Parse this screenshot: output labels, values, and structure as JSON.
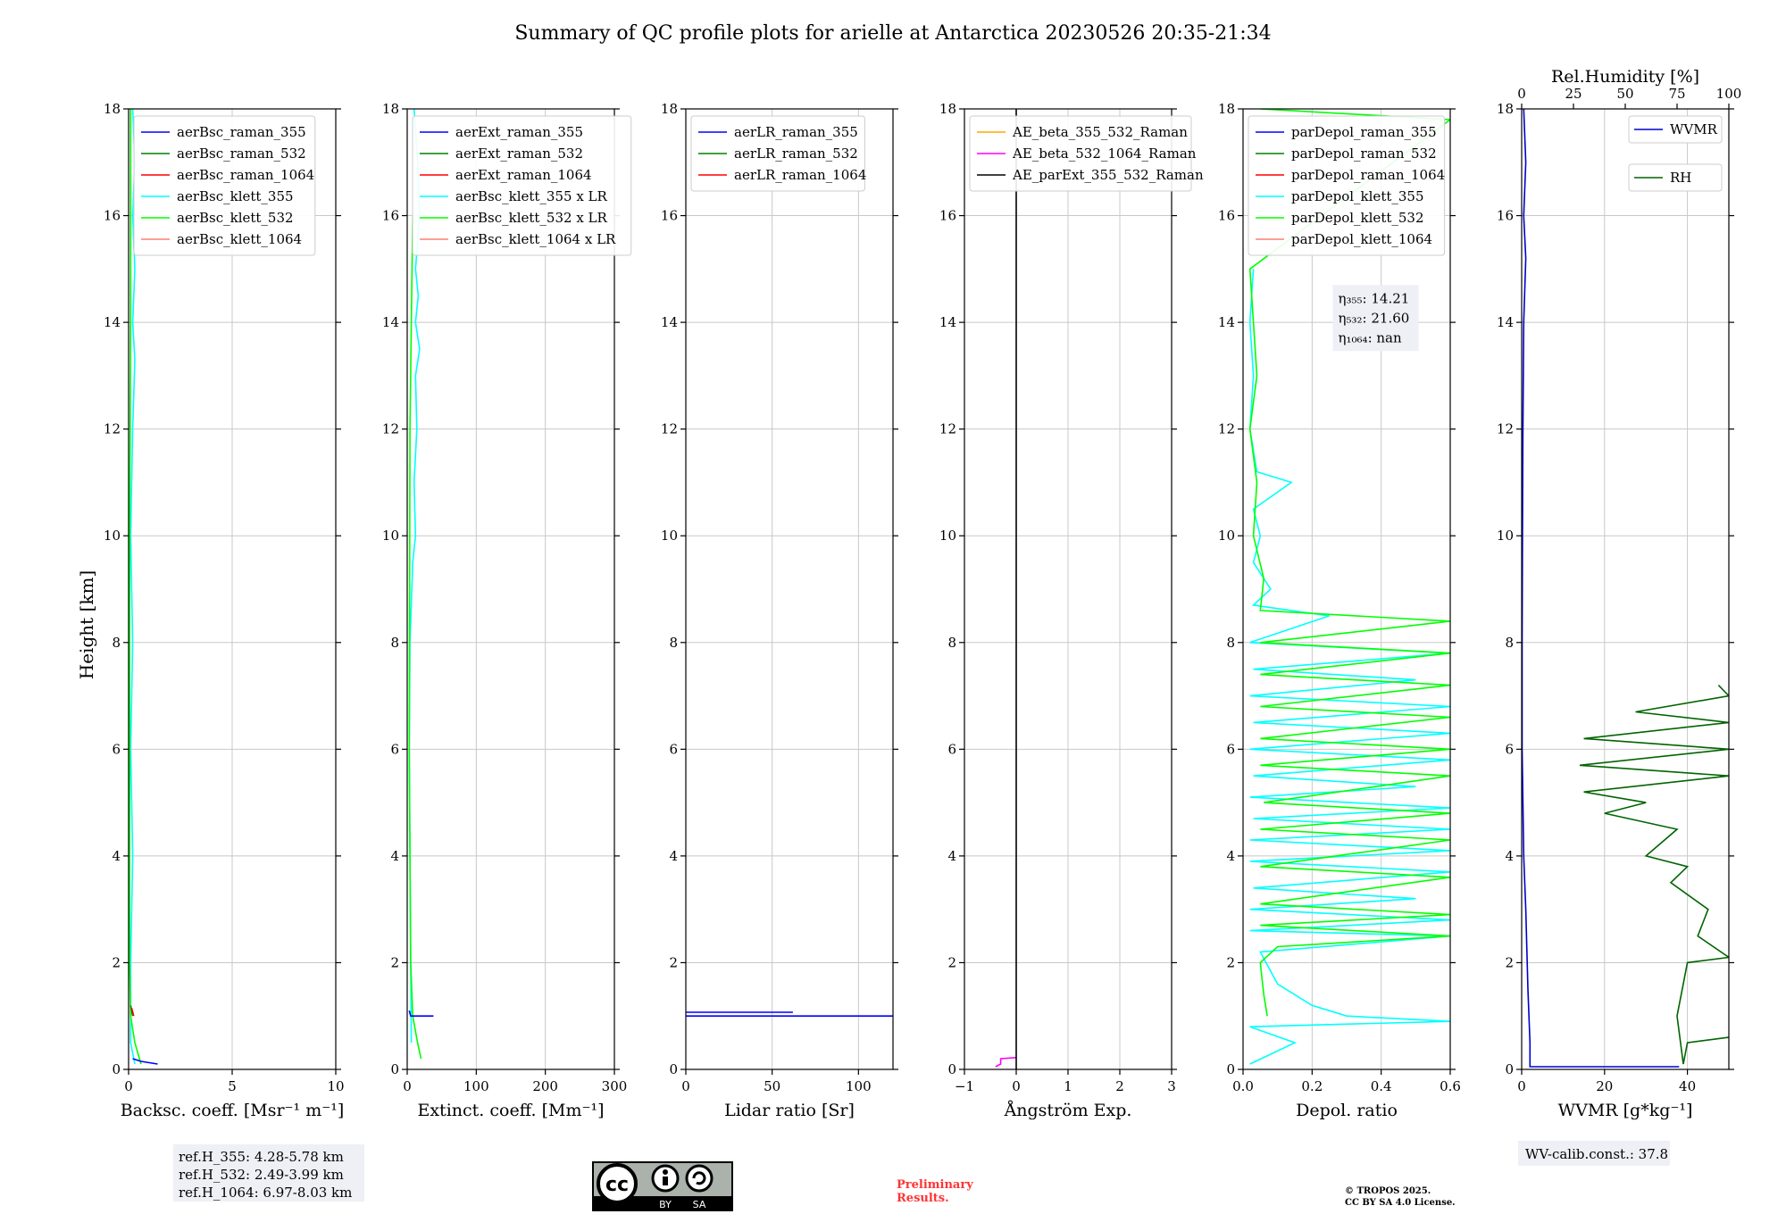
{
  "figure": {
    "title": "Summary of QC profile plots for arielle at Antarctica 20230526 20:35-21:34",
    "ylabel": "Height [km]",
    "ref_heights": [
      "ref.H_355: 4.28-5.78 km",
      "ref.H_532: 2.49-3.99 km",
      "ref.H_1064: 6.97-8.03 km"
    ],
    "license_badge": {
      "cc": "cc",
      "by": "BY",
      "sa": "SA"
    },
    "preliminary": [
      "Preliminary",
      "Results."
    ],
    "copyright": [
      "© TROPOS 2025.",
      "CC BY SA 4.0 License."
    ],
    "wv_calib": "WV-calib.const.: 37.8"
  },
  "colors": {
    "aerBsc_raman_355": "#0000ff",
    "aerBsc_raman_532": "#008000",
    "aerBsc_raman_1064": "#ff0000",
    "aerBsc_klett_355": "#00ffff",
    "aerBsc_klett_532": "#00ff00",
    "aerBsc_klett_1064": "#fa8072",
    "AE_beta_355_532_Raman": "#ffa500",
    "AE_beta_532_1064_Raman": "#ff00ff",
    "AE_parExt_355_532_Raman": "#000000",
    "WVMR": "#0000cd",
    "RH": "#006400"
  },
  "chart_data": [
    {
      "type": "line",
      "id": "backscatter",
      "xlabel": "Backsc. coeff. [Msr⁻¹ m⁻¹]",
      "xlim": [
        0,
        10
      ],
      "xticks": [
        0,
        5,
        10
      ],
      "ylim": [
        0,
        18
      ],
      "yticks": [
        0,
        2,
        4,
        6,
        8,
        10,
        12,
        14,
        16,
        18
      ],
      "grid": true,
      "legend": "top-left",
      "legend_entries": [
        "aerBsc_raman_355",
        "aerBsc_raman_532",
        "aerBsc_raman_1064",
        "aerBsc_klett_355",
        "aerBsc_klett_532",
        "aerBsc_klett_1064"
      ],
      "series": [
        {
          "name": "aerBsc_klett_355",
          "color": "#00ffff",
          "points": [
            [
              0.3,
              0.1
            ],
            [
              0.1,
              0.5
            ],
            [
              0.1,
              2
            ],
            [
              0.2,
              4
            ],
            [
              0.1,
              6
            ],
            [
              0.2,
              8
            ],
            [
              0.1,
              10
            ],
            [
              0.2,
              12
            ],
            [
              0.3,
              13.3
            ],
            [
              0.2,
              14
            ],
            [
              0.3,
              15
            ],
            [
              0.2,
              16
            ],
            [
              0.3,
              17
            ],
            [
              0.2,
              18
            ]
          ]
        },
        {
          "name": "aerBsc_klett_532",
          "color": "#00ff00",
          "points": [
            [
              0.6,
              0.1
            ],
            [
              0.3,
              0.5
            ],
            [
              0.1,
              1
            ],
            [
              0.05,
              2
            ],
            [
              0.05,
              6
            ],
            [
              0.05,
              10
            ],
            [
              0.1,
              14
            ],
            [
              0.1,
              18
            ]
          ]
        },
        {
          "name": "aerBsc_raman_355",
          "color": "#0000ff",
          "points": [
            [
              1.4,
              0.1
            ],
            [
              0.6,
              0.15
            ],
            [
              0.2,
              0.2
            ]
          ]
        },
        {
          "name": "aerBsc_raman_532",
          "color": "#008000",
          "points": [
            [
              0.2,
              1.0
            ],
            [
              0.1,
              1.2
            ]
          ]
        },
        {
          "name": "aerBsc_raman_1064",
          "color": "#ff0000",
          "points": [
            [
              0.25,
              1.0
            ],
            [
              0.15,
              1.15
            ]
          ]
        }
      ]
    },
    {
      "type": "line",
      "id": "extinction",
      "xlabel": "Extinct. coeff. [Mm⁻¹]",
      "xlim": [
        0,
        300
      ],
      "xticks": [
        0,
        100,
        200,
        300
      ],
      "ylim": [
        0,
        18
      ],
      "yticks": [
        0,
        2,
        4,
        6,
        8,
        10,
        12,
        14,
        16,
        18
      ],
      "grid": true,
      "legend": "top-left",
      "legend_entries": [
        "aerExt_raman_355",
        "aerExt_raman_532",
        "aerExt_raman_1064",
        "aerBsc_klett_355 x LR",
        "aerBsc_klett_532 x LR",
        "aerBsc_klett_1064 x LR"
      ],
      "series": [
        {
          "name": "aerBsc_klett_355 x LR",
          "color": "#00ffff",
          "points": [
            [
              6,
              0.5
            ],
            [
              5,
              2
            ],
            [
              4,
              4
            ],
            [
              3,
              6
            ],
            [
              4,
              8
            ],
            [
              8,
              9.5
            ],
            [
              12,
              10
            ],
            [
              10,
              11
            ],
            [
              14,
              12
            ],
            [
              12,
              13
            ],
            [
              18,
              13.5
            ],
            [
              12,
              14
            ],
            [
              16,
              14.5
            ],
            [
              12,
              15
            ],
            [
              18,
              16
            ],
            [
              15,
              17
            ],
            [
              10,
              18
            ]
          ]
        },
        {
          "name": "aerBsc_klett_532 x LR",
          "color": "#00ff00",
          "points": [
            [
              20,
              0.2
            ],
            [
              15,
              0.5
            ],
            [
              8,
              1
            ],
            [
              5,
              2
            ],
            [
              3,
              6
            ],
            [
              4,
              12
            ],
            [
              6,
              14
            ],
            [
              8,
              16
            ]
          ]
        },
        {
          "name": "aerExt_raman_355",
          "color": "#0000ff",
          "points": [
            [
              38,
              1.0
            ],
            [
              5,
              1.0
            ],
            [
              3,
              1.1
            ]
          ]
        }
      ]
    },
    {
      "type": "line",
      "id": "lidar_ratio",
      "xlabel": "Lidar ratio [Sr]",
      "xlim": [
        0,
        120
      ],
      "xticks": [
        0,
        50,
        100
      ],
      "ylim": [
        0,
        18
      ],
      "yticks": [
        0,
        2,
        4,
        6,
        8,
        10,
        12,
        14,
        16,
        18
      ],
      "grid": true,
      "legend": "top-left",
      "legend_entries": [
        "aerLR_raman_355",
        "aerLR_raman_532",
        "aerLR_raman_1064"
      ],
      "series": [
        {
          "name": "aerLR_raman_355",
          "color": "#0000ff",
          "points": [
            [
              0,
              1.0
            ],
            [
              120,
              1.0
            ]
          ]
        },
        {
          "name": "aerLR_raman_355",
          "color": "#0000ff",
          "points": [
            [
              0,
              1.07
            ],
            [
              62,
              1.07
            ]
          ]
        }
      ]
    },
    {
      "type": "line",
      "id": "angstrom",
      "xlabel": "Ångström Exp.",
      "xlim": [
        -1,
        3
      ],
      "xticks": [
        -1,
        0,
        1,
        2,
        3
      ],
      "ylim": [
        0,
        18
      ],
      "yticks": [
        0,
        2,
        4,
        6,
        8,
        10,
        12,
        14,
        16,
        18
      ],
      "grid": true,
      "legend": "top-left",
      "legend_entries": [
        "AE_beta_355_532_Raman",
        "AE_beta_532_1064_Raman",
        "AE_parExt_355_532_Raman"
      ],
      "series": [
        {
          "name": "AE_beta_532_1064_Raman",
          "color": "#ff00ff",
          "points": [
            [
              -0.4,
              0.05
            ],
            [
              -0.3,
              0.1
            ],
            [
              -0.3,
              0.2
            ],
            [
              0,
              0.22
            ]
          ]
        },
        {
          "name": "AE_parExt_355_532_Raman",
          "color": "#000000",
          "points": [
            [
              0,
              0
            ],
            [
              0,
              18
            ]
          ]
        }
      ]
    },
    {
      "type": "line",
      "id": "depol",
      "xlabel": "Depol. ratio",
      "xlim": [
        0,
        0.6
      ],
      "xticks": [
        0.0,
        0.2,
        0.4,
        0.6
      ],
      "ylim": [
        0,
        18
      ],
      "yticks": [
        0,
        2,
        4,
        6,
        8,
        10,
        12,
        14,
        16,
        18
      ],
      "grid": true,
      "legend": "top-left",
      "legend_entries": [
        "parDepol_raman_355",
        "parDepol_raman_532",
        "parDepol_raman_1064",
        "parDepol_klett_355",
        "parDepol_klett_532",
        "parDepol_klett_1064"
      ],
      "annotation": [
        [
          "η₃₅₅: ",
          "14.21"
        ],
        [
          "η₅₃₂: ",
          "21.60"
        ],
        [
          "η₁₀₆₄: ",
          "nan"
        ]
      ],
      "series": [
        {
          "name": "parDepol_klett_355",
          "color": "#00ffff",
          "points": [
            [
              0.02,
              0.1
            ],
            [
              0.15,
              0.5
            ],
            [
              0.02,
              0.8
            ],
            [
              0.6,
              0.9
            ],
            [
              0.3,
              1.0
            ],
            [
              0.2,
              1.2
            ],
            [
              0.1,
              1.6
            ],
            [
              0.05,
              2.2
            ],
            [
              0.6,
              2.5
            ],
            [
              0.02,
              2.6
            ],
            [
              0.6,
              2.8
            ],
            [
              0.02,
              3.0
            ],
            [
              0.5,
              3.2
            ],
            [
              0.03,
              3.4
            ],
            [
              0.6,
              3.7
            ],
            [
              0.02,
              3.9
            ],
            [
              0.6,
              4.1
            ],
            [
              0.02,
              4.3
            ],
            [
              0.6,
              4.5
            ],
            [
              0.03,
              4.7
            ],
            [
              0.6,
              4.9
            ],
            [
              0.02,
              5.1
            ],
            [
              0.5,
              5.3
            ],
            [
              0.03,
              5.5
            ],
            [
              0.6,
              5.8
            ],
            [
              0.02,
              6.0
            ],
            [
              0.6,
              6.3
            ],
            [
              0.03,
              6.5
            ],
            [
              0.6,
              6.8
            ],
            [
              0.02,
              7.0
            ],
            [
              0.5,
              7.3
            ],
            [
              0.03,
              7.5
            ],
            [
              0.6,
              7.8
            ],
            [
              0.02,
              8.0
            ],
            [
              0.25,
              8.5
            ],
            [
              0.03,
              8.7
            ],
            [
              0.08,
              9.0
            ],
            [
              0.03,
              9.5
            ],
            [
              0.05,
              10
            ],
            [
              0.03,
              10.5
            ],
            [
              0.14,
              11.0
            ],
            [
              0.04,
              11.2
            ],
            [
              0.02,
              12
            ],
            [
              0.03,
              13
            ],
            [
              0.02,
              14
            ],
            [
              0.03,
              15
            ]
          ]
        },
        {
          "name": "parDepol_klett_532",
          "color": "#00ff00",
          "points": [
            [
              0.07,
              1.0
            ],
            [
              0.06,
              1.4
            ],
            [
              0.05,
              2.0
            ],
            [
              0.1,
              2.3
            ],
            [
              0.6,
              2.5
            ],
            [
              0.05,
              2.7
            ],
            [
              0.6,
              2.9
            ],
            [
              0.05,
              3.1
            ],
            [
              0.6,
              3.6
            ],
            [
              0.05,
              3.8
            ],
            [
              0.6,
              4.3
            ],
            [
              0.05,
              4.5
            ],
            [
              0.6,
              4.8
            ],
            [
              0.06,
              5.0
            ],
            [
              0.6,
              5.5
            ],
            [
              0.05,
              5.7
            ],
            [
              0.6,
              6.0
            ],
            [
              0.05,
              6.2
            ],
            [
              0.6,
              6.6
            ],
            [
              0.05,
              6.8
            ],
            [
              0.6,
              7.2
            ],
            [
              0.05,
              7.4
            ],
            [
              0.6,
              7.8
            ],
            [
              0.05,
              8.0
            ],
            [
              0.6,
              8.4
            ],
            [
              0.05,
              8.6
            ],
            [
              0.06,
              9.2
            ],
            [
              0.03,
              10
            ],
            [
              0.04,
              11
            ],
            [
              0.02,
              12
            ],
            [
              0.04,
              13
            ],
            [
              0.03,
              14
            ],
            [
              0.02,
              15
            ],
            [
              0.6,
              17.8
            ],
            [
              0.05,
              18
            ]
          ]
        }
      ]
    },
    {
      "type": "line",
      "id": "wvmr",
      "xlabel": "WVMR [g*kg⁻¹]",
      "xlim": [
        0,
        50
      ],
      "xticks": [
        0,
        20,
        40
      ],
      "x2label": "Rel.Humidity [%]",
      "x2lim": [
        0,
        100
      ],
      "x2ticks": [
        0,
        25,
        50,
        75,
        100
      ],
      "ylim": [
        0,
        18
      ],
      "yticks": [
        0,
        2,
        4,
        6,
        8,
        10,
        12,
        14,
        16,
        18
      ],
      "grid": true,
      "legend": "top-right",
      "legend_entries": [
        "WVMR",
        "RH"
      ],
      "series": [
        {
          "name": "WVMR",
          "color": "#0000cd",
          "points": [
            [
              38,
              0.05
            ],
            [
              2,
              0.05
            ],
            [
              2,
              0.5
            ],
            [
              1.5,
              1.5
            ],
            [
              1,
              3
            ],
            [
              0.5,
              4
            ],
            [
              0.3,
              5
            ],
            [
              0.1,
              6
            ],
            [
              0.1,
              8
            ],
            [
              0.2,
              10
            ],
            [
              0.3,
              12
            ],
            [
              0.5,
              14
            ],
            [
              1,
              15.2
            ],
            [
              0.5,
              16
            ],
            [
              1,
              17
            ],
            [
              0.5,
              18
            ]
          ]
        },
        {
          "name": "RH",
          "axis": "x2",
          "color": "#006400",
          "points": [
            [
              100,
              0.6
            ],
            [
              80,
              0.5
            ],
            [
              78,
              0.1
            ],
            [
              75,
              1.0
            ],
            [
              80,
              2
            ],
            [
              100,
              2.1
            ],
            [
              85,
              2.5
            ],
            [
              90,
              3
            ],
            [
              72,
              3.5
            ],
            [
              80,
              3.8
            ],
            [
              60,
              4
            ],
            [
              75,
              4.5
            ],
            [
              40,
              4.8
            ],
            [
              60,
              5
            ],
            [
              30,
              5.2
            ],
            [
              100,
              5.5
            ],
            [
              28,
              5.7
            ],
            [
              100,
              6
            ],
            [
              30,
              6.2
            ],
            [
              100,
              6.5
            ],
            [
              55,
              6.7
            ],
            [
              100,
              7
            ],
            [
              95,
              7.2
            ]
          ]
        }
      ]
    }
  ]
}
